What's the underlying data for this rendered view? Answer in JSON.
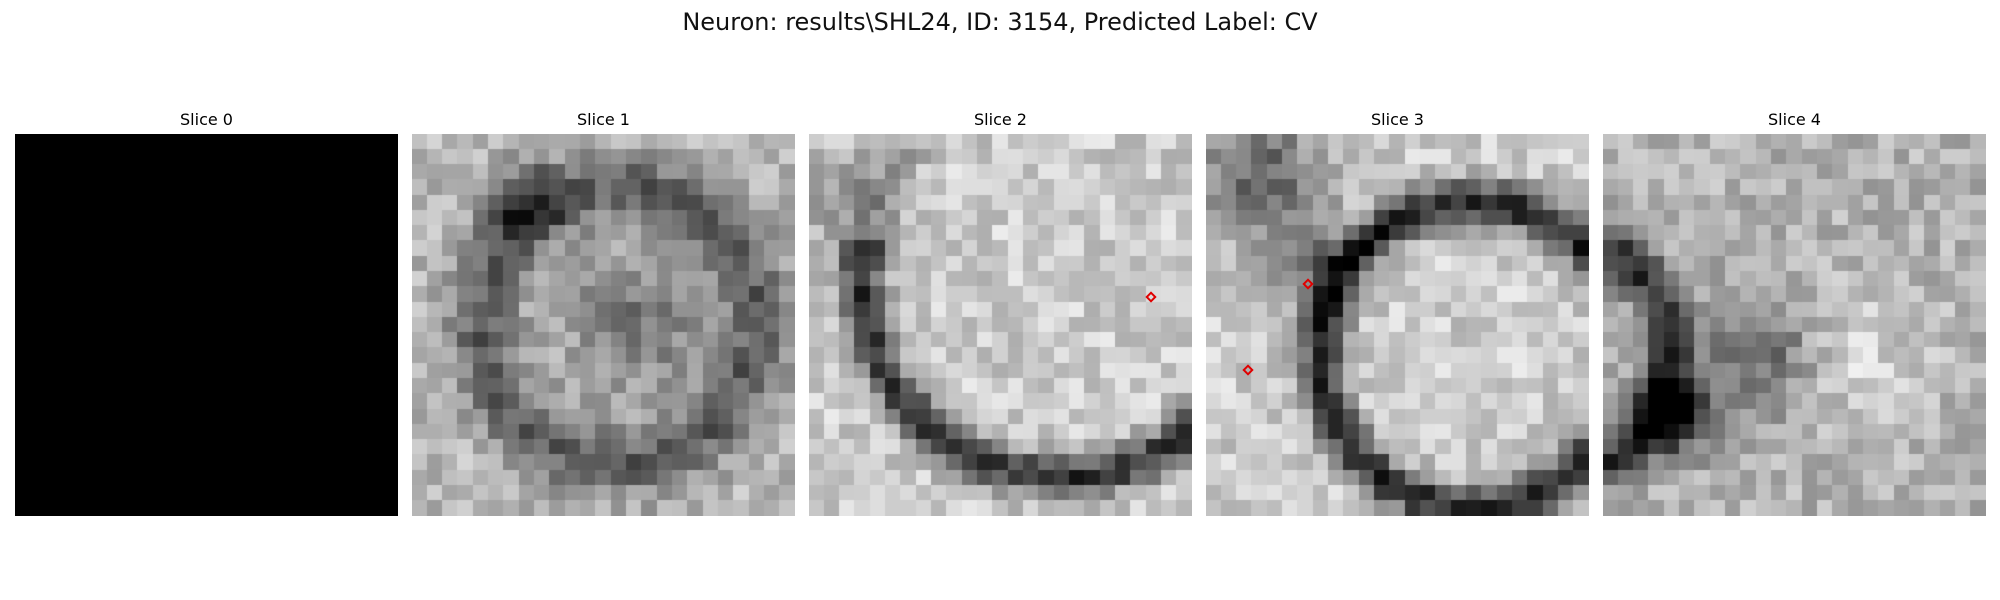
{
  "figure": {
    "title": "Neuron: results\\SHL24, ID: 3154, Predicted Label: CV",
    "panels": [
      {
        "title": "Slice 0",
        "markers": 0
      },
      {
        "title": "Slice 1",
        "markers": 0
      },
      {
        "title": "Slice 2",
        "markers": 1
      },
      {
        "title": "Slice 3",
        "markers": 2
      },
      {
        "title": "Slice 4",
        "markers": 0
      }
    ],
    "colors": {
      "background": "#ffffff",
      "marker": "#e00000"
    },
    "colormap": "grayscale"
  }
}
